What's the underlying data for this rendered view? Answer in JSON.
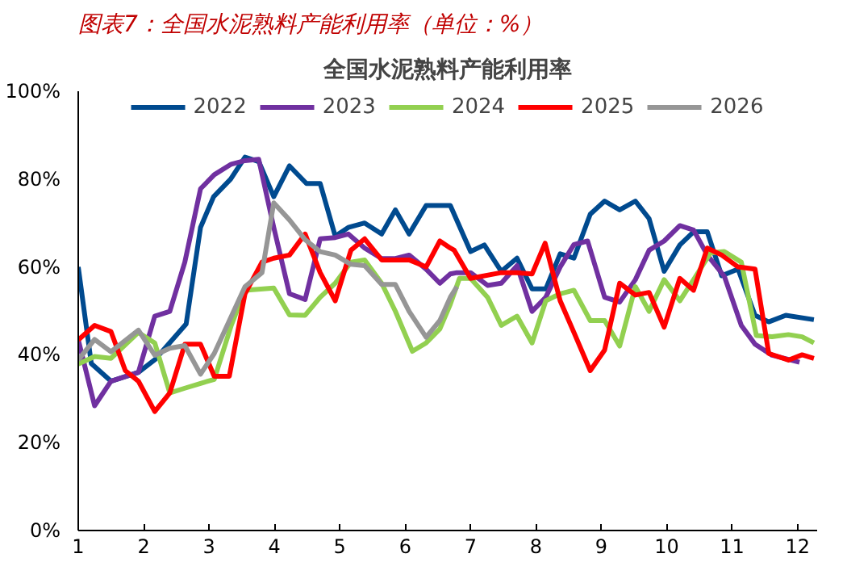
{
  "chart_data": {
    "type": "line",
    "title": "图表7：全国水泥熟料产能利用率（单位：%）",
    "subtitle": "全国水泥熟料产能利用率",
    "xlim": [
      1,
      12.3
    ],
    "xticks": [
      1,
      2,
      3,
      4,
      5,
      6,
      7,
      8,
      9,
      10,
      11,
      12
    ],
    "ylim": [
      0,
      100
    ],
    "yticks": [
      {
        "value": 0,
        "label": "0%"
      },
      {
        "value": 20,
        "label": "20%"
      },
      {
        "value": 40,
        "label": "40%"
      },
      {
        "value": 60,
        "label": "60%"
      },
      {
        "value": 80,
        "label": "80%"
      },
      {
        "value": 100,
        "label": "100%"
      }
    ],
    "legend": "top",
    "marker": "none",
    "line_style": "solid",
    "series": [
      {
        "name": "2022",
        "color": "#004a8f",
        "x": [
          1.0,
          1.2,
          1.5,
          1.92,
          2.18,
          2.65,
          2.87,
          3.07,
          3.33,
          3.55,
          3.76,
          3.99,
          4.23,
          4.49,
          4.7,
          4.93,
          5.13,
          5.38,
          5.64,
          5.85,
          6.06,
          6.32,
          6.69,
          7.0,
          7.21,
          7.47,
          7.71,
          7.94,
          8.15,
          8.37,
          8.58,
          8.83,
          9.05,
          9.28,
          9.52,
          9.73,
          9.96,
          10.2,
          10.41,
          10.62,
          10.84,
          11.09,
          11.35,
          11.56,
          11.82,
          12.25
        ],
        "values": [
          60,
          38,
          34,
          36,
          39,
          47,
          69,
          76,
          80,
          85,
          84,
          76,
          83,
          79,
          79,
          67,
          69,
          70,
          67.5,
          73,
          67.5,
          74,
          74,
          63.5,
          65,
          59,
          62,
          55,
          55,
          63,
          62,
          72,
          75,
          73,
          75,
          71,
          59,
          65,
          68,
          68,
          58,
          59.5,
          49,
          47.5,
          49,
          48
        ]
      },
      {
        "name": "2023",
        "color": "#7030a0",
        "x": [
          1.0,
          1.25,
          1.5,
          1.92,
          2.17,
          2.4,
          2.63,
          2.87,
          3.08,
          3.34,
          3.55,
          3.76,
          3.99,
          4.23,
          4.47,
          4.7,
          4.93,
          5.13,
          5.38,
          5.64,
          5.85,
          6.06,
          6.32,
          6.53,
          6.69,
          6.79,
          7.0,
          7.26,
          7.47,
          7.71,
          7.94,
          8.15,
          8.37,
          8.58,
          8.79,
          9.05,
          9.28,
          9.52,
          9.73,
          9.96,
          10.2,
          10.41,
          10.62,
          10.88,
          11.14,
          11.35,
          11.61,
          12.03
        ],
        "values": [
          43.5,
          28.4,
          34,
          36,
          48.8,
          49.9,
          61.1,
          77.8,
          81,
          83.4,
          84.2,
          84.5,
          69,
          53.9,
          52.6,
          66.4,
          66.7,
          67.5,
          64.3,
          61.9,
          61.9,
          62.7,
          59.5,
          56.3,
          58.4,
          58.7,
          58.7,
          55.8,
          56.3,
          60.3,
          49.9,
          53.1,
          60,
          65.1,
          65.9,
          53.1,
          52,
          57.1,
          63.8,
          65.9,
          69.4,
          68.4,
          62.7,
          57.9,
          46.7,
          42.4,
          39.9,
          38.3
        ]
      },
      {
        "name": "2024",
        "color": "#92d050",
        "x": [
          1.0,
          1.25,
          1.5,
          1.92,
          2.17,
          2.4,
          2.63,
          2.87,
          3.08,
          3.34,
          3.55,
          3.99,
          4.23,
          4.47,
          4.7,
          4.93,
          5.17,
          5.38,
          5.64,
          5.85,
          6.11,
          6.32,
          6.53,
          6.69,
          6.83,
          7.0,
          7.26,
          7.47,
          7.71,
          7.94,
          8.15,
          8.37,
          8.58,
          8.83,
          9.05,
          9.28,
          9.52,
          9.73,
          9.96,
          10.2,
          10.41,
          10.67,
          10.88,
          11.14,
          11.37,
          11.61,
          11.86,
          12.07,
          12.25
        ],
        "values": [
          37.9,
          39.6,
          39.2,
          45.1,
          42.7,
          31.3,
          32.4,
          33.5,
          34.4,
          46.7,
          54.7,
          55.2,
          49.1,
          49,
          53.1,
          56.3,
          61.1,
          61.6,
          56.3,
          49.9,
          40.8,
          42.7,
          45.9,
          51.5,
          57.4,
          57.4,
          53.1,
          46.7,
          48.8,
          42.7,
          52.3,
          53.9,
          54.7,
          47.8,
          47.8,
          42,
          55.5,
          49.9,
          57.1,
          52.3,
          57.1,
          63.2,
          63.5,
          61.1,
          44.4,
          44.1,
          44.6,
          44.1,
          42.7
        ]
      },
      {
        "name": "2025",
        "color": "#ff0000",
        "x": [
          1.0,
          1.25,
          1.5,
          1.72,
          1.92,
          2.17,
          2.4,
          2.63,
          2.87,
          3.08,
          3.31,
          3.55,
          3.81,
          3.99,
          4.23,
          4.47,
          4.7,
          4.93,
          5.17,
          5.38,
          5.64,
          5.85,
          6.06,
          6.32,
          6.53,
          6.69,
          6.75,
          7.0,
          7.47,
          7.71,
          7.94,
          8.14,
          8.37,
          8.58,
          8.83,
          9.05,
          9.28,
          9.52,
          9.73,
          9.96,
          10.2,
          10.41,
          10.62,
          10.84,
          11.09,
          11.35,
          11.56,
          11.86,
          12.07,
          12.25
        ],
        "values": [
          43.4,
          46.7,
          45.3,
          36.4,
          34,
          27.1,
          31.3,
          42.4,
          42.4,
          35.1,
          35.1,
          53.9,
          61.1,
          62,
          62.7,
          67.5,
          58.7,
          52.3,
          63.8,
          66.4,
          61.6,
          61.6,
          61.6,
          60,
          65.9,
          64.3,
          63.8,
          57.4,
          58.7,
          58.7,
          58.4,
          65.4,
          52.3,
          45.1,
          36.4,
          41.1,
          56.3,
          53.6,
          54.2,
          46.3,
          57.4,
          54.7,
          64.3,
          62.7,
          60,
          59.5,
          40.3,
          38.8,
          40,
          39.2
        ]
      },
      {
        "name": "2026",
        "color": "#969696",
        "x": [
          1.0,
          1.25,
          1.5,
          1.92,
          2.17,
          2.4,
          2.63,
          2.87,
          3.08,
          3.55,
          3.81,
          3.99,
          4.23,
          4.47,
          4.7,
          4.93,
          5.17,
          5.38,
          5.64,
          5.85,
          6.06,
          6.32,
          6.53,
          6.69,
          6.79
        ],
        "values": [
          38.8,
          43.5,
          40.7,
          45.6,
          39.9,
          41.5,
          42.1,
          35.6,
          40.3,
          55.5,
          58.7,
          74.6,
          70.7,
          66.2,
          63.5,
          62.7,
          60.6,
          60.3,
          56,
          56,
          49.9,
          44,
          47.8,
          53.1,
          55.5
        ]
      }
    ]
  }
}
